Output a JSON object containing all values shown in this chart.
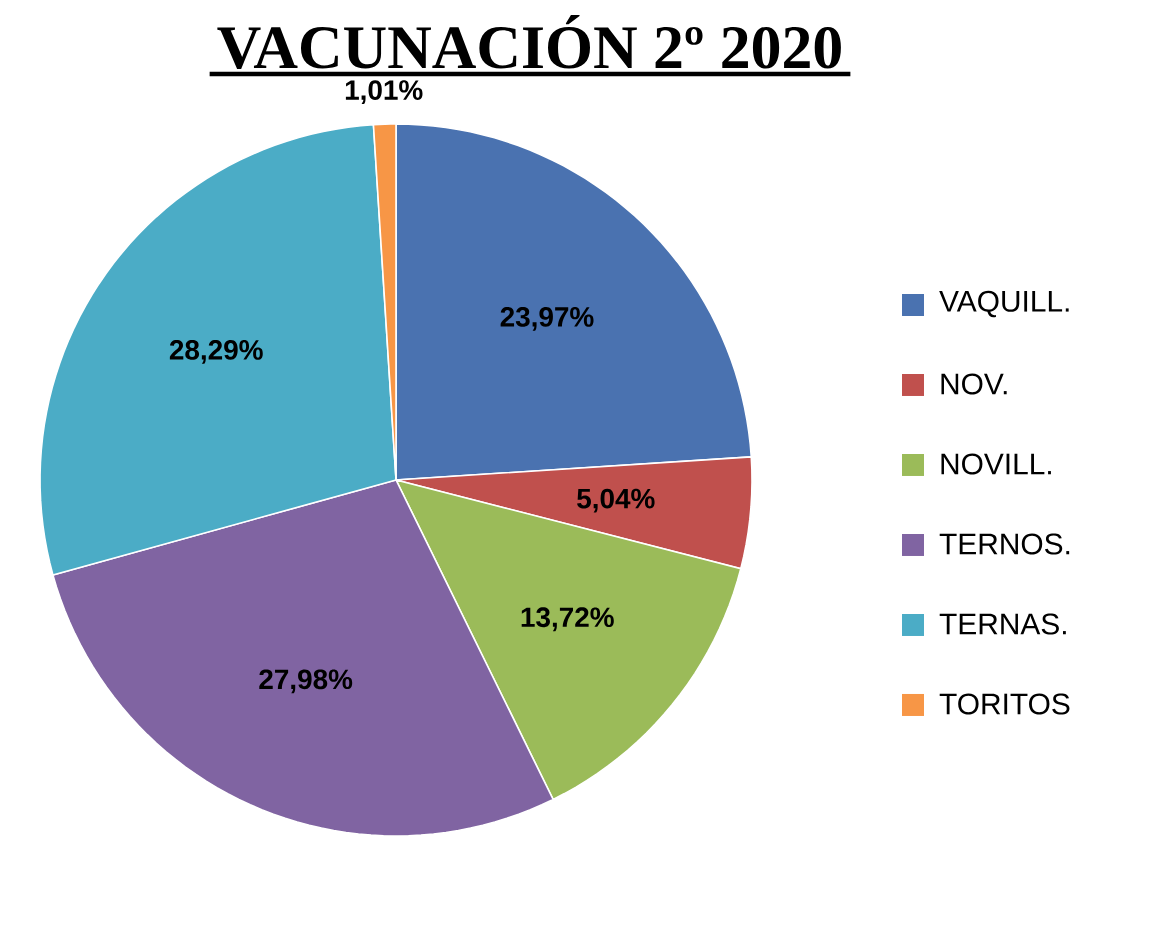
{
  "chart_data": {
    "type": "pie",
    "title": "VACUNACIÓN 2º 2020",
    "categories": [
      "VAQUILL.",
      "NOV.",
      "NOVILL.",
      "TERNOS.",
      "TERNAS.",
      "TORITOS"
    ],
    "values": [
      23.97,
      5.04,
      13.72,
      27.98,
      28.29,
      1.01
    ],
    "colors": [
      "#4a72b0",
      "#c0504d",
      "#9bbb59",
      "#8064a2",
      "#4bacc6",
      "#f79646"
    ],
    "value_labels": [
      "23,97%",
      "5,04%",
      "13,72%",
      "27,98%",
      "28,29%",
      "1,01%"
    ],
    "legend": "right"
  }
}
